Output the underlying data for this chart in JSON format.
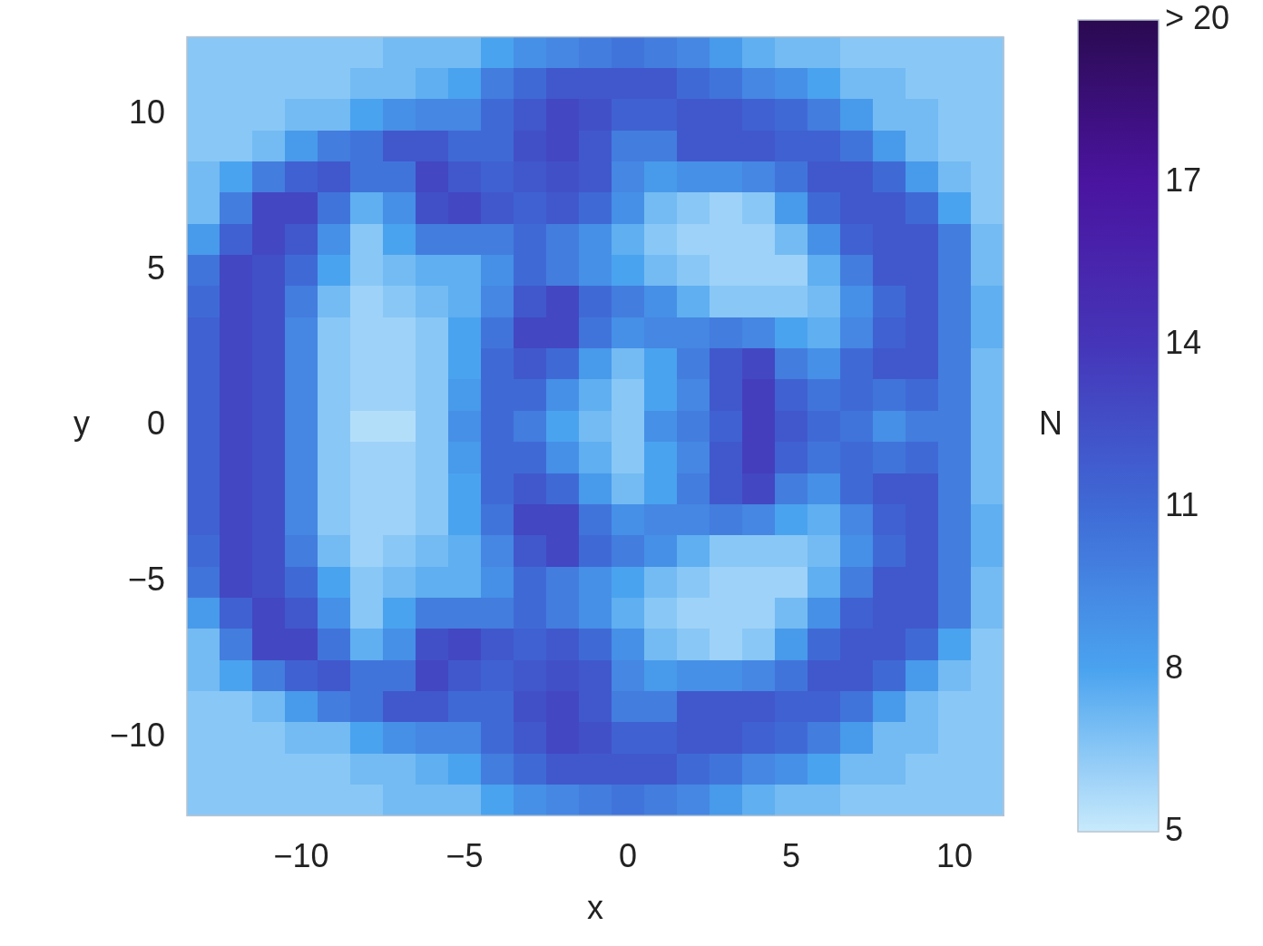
{
  "chart_data": {
    "type": "heatmap",
    "xlabel": "x",
    "ylabel": "y",
    "clabel": "N",
    "categories": [
      null,
      null,
      null,
      "−10",
      null,
      null,
      null,
      null,
      "−5",
      null,
      null,
      null,
      null,
      "0",
      null,
      null,
      null,
      null,
      "5",
      null,
      null,
      null,
      null,
      "10",
      null
    ],
    "y_categories": [
      null,
      null,
      "10",
      null,
      null,
      null,
      null,
      "5",
      null,
      null,
      null,
      null,
      "0",
      null,
      null,
      null,
      null,
      "−5",
      null,
      null,
      null,
      null,
      "−10",
      null,
      null
    ],
    "clim": [
      5,
      20
    ],
    "cticks": [
      5,
      8,
      11,
      14,
      17,
      {
        "value": 20,
        "label": "> 20"
      }
    ],
    "cells": [
      [
        6.5,
        6.5,
        6.5,
        6.5,
        6.5,
        6.5,
        7,
        7,
        7,
        8,
        9,
        9.5,
        10,
        10.5,
        10,
        9.5,
        8.5,
        7.5,
        7,
        7,
        6.5,
        6.5,
        6.5,
        6.5,
        6.5
      ],
      [
        6.5,
        6.5,
        6.5,
        6.5,
        6.5,
        7,
        7,
        7.5,
        8,
        10,
        11,
        12,
        12,
        12,
        12,
        11,
        10.5,
        9.5,
        9,
        8,
        7,
        7,
        6.5,
        6.5,
        6.5
      ],
      [
        6.5,
        6.5,
        6.5,
        7,
        7,
        8,
        9,
        9.5,
        9.5,
        11,
        12,
        13,
        12.5,
        11.5,
        11.5,
        12,
        12,
        11.5,
        11,
        10,
        8.5,
        7,
        7,
        6.5,
        6.5
      ],
      [
        6.5,
        6.5,
        7,
        8.5,
        10,
        10.5,
        12,
        12,
        11,
        11,
        12.5,
        13,
        12,
        10,
        10,
        12,
        12,
        12,
        11.5,
        11.5,
        10.5,
        8.5,
        7,
        6.5,
        6.5
      ],
      [
        7,
        8,
        10,
        11.5,
        12,
        10.5,
        10.5,
        13,
        12,
        11.5,
        12,
        12.5,
        12,
        9.5,
        8.5,
        9,
        9,
        9.5,
        10.5,
        12,
        12,
        11,
        8.5,
        7,
        6.5
      ],
      [
        7,
        10,
        13,
        13,
        10.5,
        7.5,
        9,
        12.5,
        13,
        12,
        11.5,
        12,
        11,
        9,
        7,
        6.5,
        6,
        6.5,
        8.5,
        11,
        12,
        12,
        11,
        8,
        6.5
      ],
      [
        8.5,
        11.5,
        13,
        12,
        9,
        6.5,
        8,
        10,
        10,
        10,
        11,
        10,
        9,
        7.5,
        6.5,
        6,
        6,
        6,
        7,
        9,
        11.5,
        12,
        12,
        10,
        7
      ],
      [
        10.5,
        13,
        12.5,
        11,
        8,
        6.5,
        7,
        7.5,
        7.5,
        9,
        11,
        10,
        9,
        8,
        7,
        6.5,
        6,
        6,
        6,
        7.5,
        10,
        12,
        12,
        10,
        7
      ],
      [
        11,
        13,
        12.5,
        10,
        7,
        6,
        6.5,
        7,
        7.5,
        9.5,
        12,
        13,
        11,
        10,
        9,
        7.5,
        6.5,
        6.5,
        6.5,
        7,
        9,
        11,
        12,
        10,
        7.5
      ],
      [
        11.5,
        13,
        12.5,
        9.5,
        6.5,
        6,
        6,
        6.5,
        8,
        10.5,
        13,
        13,
        10.5,
        9,
        9.5,
        9.5,
        10,
        9.5,
        8,
        7.5,
        9.5,
        11.5,
        12,
        10,
        7.5
      ],
      [
        11.5,
        13,
        12.5,
        9.5,
        6.5,
        6,
        6,
        6.5,
        8,
        11,
        12,
        11,
        8.5,
        7,
        8,
        10,
        12,
        13,
        10,
        9,
        11,
        12,
        12,
        10,
        7
      ],
      [
        11.5,
        13,
        12.5,
        9.5,
        6.5,
        6,
        6,
        6.5,
        8.5,
        11,
        11,
        9,
        7.5,
        6.5,
        8,
        9.5,
        12,
        13.5,
        11.5,
        10.5,
        11,
        10.5,
        11,
        10,
        7
      ],
      [
        11.5,
        13,
        12.5,
        9.5,
        6.5,
        5.5,
        5.5,
        6.5,
        9,
        11,
        10,
        8,
        7,
        6.5,
        9,
        10,
        11.5,
        13.5,
        12,
        11,
        10.5,
        9,
        10,
        10,
        7
      ],
      [
        11.5,
        13,
        12.5,
        9.5,
        6.5,
        6,
        6,
        6.5,
        8.5,
        11,
        11,
        9,
        7.5,
        6.5,
        8,
        9.5,
        12,
        13.5,
        11.5,
        10.5,
        11,
        10.5,
        11,
        10,
        7
      ],
      [
        11.5,
        13,
        12.5,
        9.5,
        6.5,
        6,
        6,
        6.5,
        8,
        11,
        12,
        11,
        8.5,
        7,
        8,
        10,
        12,
        13,
        10,
        9,
        11,
        12,
        12,
        10,
        7
      ],
      [
        11.5,
        13,
        12.5,
        9.5,
        6.5,
        6,
        6,
        6.5,
        8,
        10.5,
        13,
        13,
        10.5,
        9,
        9.5,
        9.5,
        10,
        9.5,
        8,
        7.5,
        9.5,
        11.5,
        12,
        10,
        7.5
      ],
      [
        11,
        13,
        12.5,
        10,
        7,
        6,
        6.5,
        7,
        7.5,
        9.5,
        12,
        13,
        11,
        10,
        9,
        7.5,
        6.5,
        6.5,
        6.5,
        7,
        9,
        11,
        12,
        10,
        7.5
      ],
      [
        10.5,
        13,
        12.5,
        11,
        8,
        6.5,
        7,
        7.5,
        7.5,
        9,
        11,
        10,
        9,
        8,
        7,
        6.5,
        6,
        6,
        6,
        7.5,
        10,
        12,
        12,
        10,
        7
      ],
      [
        8.5,
        11.5,
        13,
        12,
        9,
        6.5,
        8,
        10,
        10,
        10,
        11,
        10,
        9,
        7.5,
        6.5,
        6,
        6,
        6,
        7,
        9,
        11.5,
        12,
        12,
        10,
        7
      ],
      [
        7,
        10,
        13,
        13,
        10.5,
        7.5,
        9,
        12.5,
        13,
        12,
        11.5,
        12,
        11,
        9,
        7,
        6.5,
        6,
        6.5,
        8.5,
        11,
        12,
        12,
        11,
        8,
        6.5
      ],
      [
        7,
        8,
        10,
        11.5,
        12,
        10.5,
        10.5,
        13,
        12,
        11.5,
        12,
        12.5,
        12,
        9.5,
        8.5,
        9,
        9,
        9.5,
        10.5,
        12,
        12,
        11,
        8.5,
        7,
        6.5
      ],
      [
        6.5,
        6.5,
        7,
        8.5,
        10,
        10.5,
        12,
        12,
        11,
        11,
        12.5,
        13,
        12,
        10,
        10,
        12,
        12,
        12,
        11.5,
        11.5,
        10.5,
        8.5,
        7,
        6.5,
        6.5
      ],
      [
        6.5,
        6.5,
        6.5,
        7,
        7,
        8,
        9,
        9.5,
        9.5,
        11,
        12,
        13,
        12.5,
        11.5,
        11.5,
        12,
        12,
        11.5,
        11,
        10,
        8.5,
        7,
        7,
        6.5,
        6.5
      ],
      [
        6.5,
        6.5,
        6.5,
        6.5,
        6.5,
        7,
        7,
        7.5,
        8,
        10,
        11,
        12,
        12,
        12,
        12,
        11,
        10.5,
        9.5,
        9,
        8,
        7,
        7,
        6.5,
        6.5,
        6.5
      ],
      [
        6.5,
        6.5,
        6.5,
        6.5,
        6.5,
        6.5,
        7,
        7,
        7,
        8,
        9,
        9.5,
        10,
        10.5,
        10,
        9.5,
        8.5,
        7.5,
        7,
        7,
        6.5,
        6.5,
        6.5,
        6.5,
        6.5
      ]
    ]
  }
}
